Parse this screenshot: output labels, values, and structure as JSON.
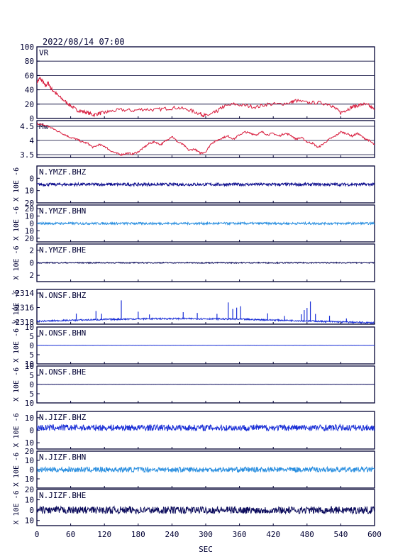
{
  "header": {
    "timestamp": "2022/08/14 07:00"
  },
  "colors": {
    "frame": "#000033",
    "vr": "#d81b3c",
    "mw": "#d81b3c",
    "dark_blue": "#0a0a8c",
    "blue": "#1a2fd6",
    "light_blue": "#2a8fe0",
    "navy": "#0c0c5c"
  },
  "chart_data": {
    "type": "line",
    "title": "2022/08/14 07:00",
    "xlabel": "SEC",
    "xlim": [
      0,
      600
    ],
    "x_ticks": [
      0,
      60,
      120,
      180,
      240,
      300,
      360,
      420,
      480,
      540,
      600
    ],
    "panels": [
      {
        "id": "vr",
        "label": "VR",
        "color": "#d81b3c",
        "ylabel": "",
        "ylim": [
          0,
          100
        ],
        "yticks": [
          0,
          20,
          40,
          60,
          80,
          100
        ],
        "grid": true,
        "series": {
          "x": [
            0,
            5,
            10,
            15,
            20,
            25,
            30,
            40,
            50,
            60,
            70,
            80,
            90,
            100,
            110,
            120,
            130,
            150,
            170,
            190,
            210,
            230,
            250,
            270,
            285,
            295,
            300,
            310,
            320,
            330,
            350,
            370,
            390,
            410,
            430,
            450,
            460,
            480,
            500,
            520,
            530,
            540,
            550,
            560,
            570,
            580,
            590,
            600
          ],
          "y": [
            50,
            56,
            52,
            45,
            50,
            42,
            38,
            30,
            24,
            18,
            12,
            10,
            8,
            5,
            7,
            8,
            10,
            12,
            11,
            13,
            12,
            14,
            15,
            12,
            8,
            5,
            4,
            6,
            10,
            16,
            20,
            18,
            16,
            20,
            20,
            22,
            25,
            22,
            22,
            20,
            14,
            8,
            12,
            16,
            18,
            20,
            18,
            12
          ]
        }
      },
      {
        "id": "mw",
        "label": "Mw",
        "color": "#d81b3c",
        "ylabel": "",
        "ylim": [
          3.4,
          4.7
        ],
        "yticks": [
          3.5,
          4.0,
          4.5
        ],
        "grid": true,
        "series": {
          "x": [
            0,
            10,
            20,
            30,
            40,
            50,
            60,
            70,
            80,
            90,
            100,
            110,
            120,
            130,
            140,
            150,
            160,
            170,
            180,
            190,
            200,
            210,
            220,
            230,
            240,
            250,
            260,
            270,
            280,
            290,
            300,
            310,
            320,
            330,
            340,
            350,
            360,
            370,
            380,
            390,
            400,
            410,
            420,
            430,
            440,
            450,
            460,
            470,
            480,
            490,
            500,
            510,
            520,
            530,
            540,
            550,
            560,
            570,
            580,
            590,
            600
          ],
          "y": [
            4.6,
            4.55,
            4.5,
            4.4,
            4.3,
            4.2,
            4.1,
            4.05,
            3.95,
            3.9,
            3.75,
            3.85,
            3.8,
            3.65,
            3.55,
            3.5,
            3.55,
            3.52,
            3.6,
            3.75,
            3.9,
            3.95,
            3.85,
            4.0,
            4.15,
            3.95,
            3.85,
            3.65,
            3.7,
            3.55,
            3.6,
            3.9,
            4.0,
            4.1,
            4.15,
            4.05,
            4.2,
            4.3,
            4.25,
            4.2,
            4.3,
            4.2,
            4.25,
            4.15,
            4.25,
            4.2,
            4.05,
            4.1,
            3.95,
            3.9,
            3.75,
            3.9,
            4.05,
            4.15,
            4.3,
            4.25,
            4.15,
            4.25,
            4.1,
            4.0,
            3.85
          ]
        }
      },
      {
        "id": "ymz-bhz",
        "label": "N.YMZF.BHZ",
        "color": "#0a0a8c",
        "ylabel": "X 10E -6",
        "ylim": [
          -20,
          10
        ],
        "yticks": [
          0,
          -10,
          -20
        ],
        "ytick_labels": [
          "0",
          "10",
          "20"
        ],
        "grid": false,
        "trace": {
          "mean": -5,
          "noise": 1.2,
          "spikes": []
        }
      },
      {
        "id": "ymz-bhn",
        "label": "N.YMZF.BHN",
        "color": "#2a8fe0",
        "ylabel": "X 10E -6",
        "ylim": [
          -25,
          25
        ],
        "yticks": [
          20,
          10,
          0,
          -10,
          -20
        ],
        "ytick_labels": [
          "20",
          "10",
          "0",
          "10",
          "20"
        ],
        "grid": false,
        "trace": {
          "mean": 0,
          "noise": 1.5,
          "spikes": []
        }
      },
      {
        "id": "ymz-bhe",
        "label": "N.YMZF.BHE",
        "color": "#0c0c5c",
        "ylabel": "X 10E -6",
        "ylim": [
          -3,
          3
        ],
        "yticks": [
          2,
          0,
          -2
        ],
        "ytick_labels": [
          "2",
          "0",
          "2"
        ],
        "grid": false,
        "trace": {
          "mean": 0,
          "noise": 0.08,
          "spikes": []
        }
      },
      {
        "id": "ons-bhz",
        "label": "N.ONSF.BHZ",
        "color": "#1a2fd6",
        "ylabel": "X 10E -6",
        "ylim": [
          -2318.3,
          -2313.5
        ],
        "yticks": [
          -2314,
          -2316,
          -2318
        ],
        "ytick_labels": [
          "-2314",
          "-2316",
          "-2318"
        ],
        "grid": false,
        "trace": {
          "mean": -2317.9,
          "noise": 0.1,
          "drift": 0.6,
          "spikes": [
            [
              70,
              0.9
            ],
            [
              105,
              1.2
            ],
            [
              115,
              0.8
            ],
            [
              150,
              2.6
            ],
            [
              180,
              1.0
            ],
            [
              200,
              0.6
            ],
            [
              260,
              0.9
            ],
            [
              285,
              0.8
            ],
            [
              320,
              0.7
            ],
            [
              340,
              2.3
            ],
            [
              348,
              1.4
            ],
            [
              355,
              1.6
            ],
            [
              362,
              1.8
            ],
            [
              410,
              0.9
            ],
            [
              440,
              0.6
            ],
            [
              470,
              0.9
            ],
            [
              475,
              1.5
            ],
            [
              480,
              1.8
            ],
            [
              486,
              2.7
            ],
            [
              495,
              1.0
            ],
            [
              520,
              0.8
            ],
            [
              550,
              0.5
            ]
          ]
        }
      },
      {
        "id": "ons-bhn",
        "label": "N.ONSF.BHN",
        "color": "#1a2fd6",
        "ylabel": "X 10E -6",
        "ylim": [
          -10,
          10
        ],
        "yticks": [
          10,
          5,
          0,
          -5,
          -10
        ],
        "ytick_labels": [
          "10",
          "5",
          "0",
          "5",
          "10"
        ],
        "grid": false,
        "trace": {
          "mean": 0,
          "noise": 0.03,
          "spikes": []
        }
      },
      {
        "id": "ons-bhe",
        "label": "N.ONSF.BHE",
        "color": "#0c0c5c",
        "ylabel": "X 10E -6",
        "ylim": [
          -10,
          10
        ],
        "yticks": [
          10,
          5,
          0,
          -5,
          -10
        ],
        "ytick_labels": [
          "10",
          "5",
          "0",
          "5",
          "10"
        ],
        "grid": false,
        "trace": {
          "mean": 0,
          "noise": 0.05,
          "spikes": []
        }
      },
      {
        "id": "jiz-bhz",
        "label": "N.JIZF.BHZ",
        "color": "#1a2fd6",
        "ylabel": "X 10E -6",
        "ylim": [
          -15,
          15
        ],
        "yticks": [
          10,
          0,
          -10
        ],
        "ytick_labels": [
          "10",
          "0",
          "10"
        ],
        "grid": false,
        "trace": {
          "mean": 2,
          "noise": 2.5,
          "spikes": []
        }
      },
      {
        "id": "jiz-bhn",
        "label": "N.JIZF.BHN",
        "color": "#2a8fe0",
        "ylabel": "X 10E -6",
        "ylim": [
          -20,
          20
        ],
        "yticks": [
          20,
          10,
          0,
          -10
        ],
        "ytick_labels": [
          "20",
          "10",
          "0",
          "10"
        ],
        "grid": false,
        "trace": {
          "mean": 0,
          "noise": 2.8,
          "spikes": []
        }
      },
      {
        "id": "jiz-bhe",
        "label": "N.JIZF.BHE",
        "color": "#0c0c5c",
        "ylabel": "X 10E -6",
        "ylim": [
          -15,
          20
        ],
        "yticks": [
          20,
          10,
          0,
          -10
        ],
        "ytick_labels": [
          "20",
          "10",
          "0",
          "10"
        ],
        "grid": false,
        "trace": {
          "mean": 0,
          "noise": 3.5,
          "spikes": []
        }
      }
    ]
  }
}
